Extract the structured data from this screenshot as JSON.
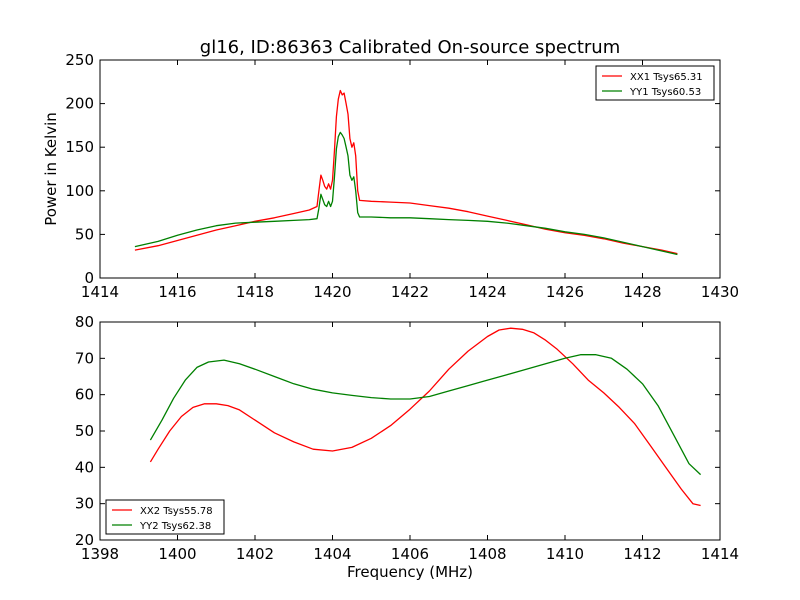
{
  "title": "gl16, ID:86363 Calibrated On-source spectrum",
  "chart_data": [
    {
      "type": "line",
      "ylabel": "Power in Kelvin",
      "xlabel": "",
      "xlim": [
        1414,
        1430
      ],
      "ylim": [
        0,
        250
      ],
      "xticks": [
        "1414",
        "1416",
        "1418",
        "1420",
        "1422",
        "1424",
        "1426",
        "1428",
        "1430"
      ],
      "yticks": [
        "0",
        "50",
        "100",
        "150",
        "200",
        "250"
      ],
      "legend_position": "top-right",
      "series": [
        {
          "name": "XX1 Tsys65.31",
          "color": "#ff0000",
          "points": [
            [
              1414.9,
              32
            ],
            [
              1415.5,
              37
            ],
            [
              1416,
              43
            ],
            [
              1416.5,
              49
            ],
            [
              1417,
              55
            ],
            [
              1417.5,
              60
            ],
            [
              1418,
              65
            ],
            [
              1418.5,
              69
            ],
            [
              1419,
              74
            ],
            [
              1419.4,
              78
            ],
            [
              1419.6,
              82
            ],
            [
              1419.65,
              100
            ],
            [
              1419.7,
              118
            ],
            [
              1419.75,
              112
            ],
            [
              1419.8,
              105
            ],
            [
              1419.85,
              102
            ],
            [
              1419.9,
              108
            ],
            [
              1419.95,
              102
            ],
            [
              1420.0,
              112
            ],
            [
              1420.05,
              145
            ],
            [
              1420.1,
              185
            ],
            [
              1420.15,
              205
            ],
            [
              1420.2,
              215
            ],
            [
              1420.25,
              210
            ],
            [
              1420.3,
              212
            ],
            [
              1420.35,
              200
            ],
            [
              1420.4,
              188
            ],
            [
              1420.45,
              160
            ],
            [
              1420.5,
              150
            ],
            [
              1420.55,
              155
            ],
            [
              1420.6,
              140
            ],
            [
              1420.65,
              100
            ],
            [
              1420.7,
              89
            ],
            [
              1421,
              88
            ],
            [
              1421.5,
              87
            ],
            [
              1422,
              86
            ],
            [
              1422.5,
              83
            ],
            [
              1423,
              80
            ],
            [
              1423.5,
              76
            ],
            [
              1424,
              71
            ],
            [
              1424.5,
              66
            ],
            [
              1425,
              61
            ],
            [
              1425.5,
              56
            ],
            [
              1426,
              52
            ],
            [
              1426.5,
              49
            ],
            [
              1427,
              45
            ],
            [
              1427.5,
              40
            ],
            [
              1428,
              36
            ],
            [
              1428.5,
              32
            ],
            [
              1428.9,
              28
            ]
          ]
        },
        {
          "name": "YY1 Tsys60.53",
          "color": "#008000",
          "points": [
            [
              1414.9,
              36
            ],
            [
              1415.5,
              42
            ],
            [
              1416,
              49
            ],
            [
              1416.5,
              55
            ],
            [
              1417,
              60
            ],
            [
              1417.5,
              63
            ],
            [
              1418,
              64
            ],
            [
              1418.5,
              65
            ],
            [
              1419,
              66
            ],
            [
              1419.4,
              67
            ],
            [
              1419.6,
              68
            ],
            [
              1419.65,
              80
            ],
            [
              1419.7,
              96
            ],
            [
              1419.75,
              90
            ],
            [
              1419.8,
              84
            ],
            [
              1419.85,
              82
            ],
            [
              1419.9,
              88
            ],
            [
              1419.95,
              82
            ],
            [
              1420.0,
              88
            ],
            [
              1420.05,
              115
            ],
            [
              1420.1,
              148
            ],
            [
              1420.15,
              162
            ],
            [
              1420.2,
              167
            ],
            [
              1420.25,
              164
            ],
            [
              1420.3,
              160
            ],
            [
              1420.35,
              150
            ],
            [
              1420.4,
              140
            ],
            [
              1420.45,
              118
            ],
            [
              1420.5,
              112
            ],
            [
              1420.55,
              116
            ],
            [
              1420.6,
              100
            ],
            [
              1420.65,
              75
            ],
            [
              1420.7,
              70
            ],
            [
              1421,
              70
            ],
            [
              1421.5,
              69
            ],
            [
              1422,
              69
            ],
            [
              1422.5,
              68
            ],
            [
              1423,
              67
            ],
            [
              1423.5,
              66
            ],
            [
              1424,
              65
            ],
            [
              1424.5,
              63
            ],
            [
              1425,
              60
            ],
            [
              1425.5,
              57
            ],
            [
              1426,
              53
            ],
            [
              1426.5,
              50
            ],
            [
              1427,
              46
            ],
            [
              1427.5,
              41
            ],
            [
              1428,
              36
            ],
            [
              1428.5,
              31
            ],
            [
              1428.9,
              27
            ]
          ]
        }
      ]
    },
    {
      "type": "line",
      "xlabel": "Frequency (MHz)",
      "ylabel": "",
      "xlim": [
        1398,
        1414
      ],
      "ylim": [
        20,
        80
      ],
      "xticks": [
        "1398",
        "1400",
        "1402",
        "1404",
        "1406",
        "1408",
        "1410",
        "1412",
        "1414"
      ],
      "yticks": [
        "20",
        "30",
        "40",
        "50",
        "60",
        "70",
        "80"
      ],
      "legend_position": "bottom-left",
      "series": [
        {
          "name": "XX2 Tsys55.78",
          "color": "#ff0000",
          "points": [
            [
              1399.3,
              41.5
            ],
            [
              1399.5,
              45
            ],
            [
              1399.8,
              50
            ],
            [
              1400.1,
              54
            ],
            [
              1400.4,
              56.5
            ],
            [
              1400.7,
              57.5
            ],
            [
              1401,
              57.5
            ],
            [
              1401.3,
              57
            ],
            [
              1401.6,
              55.8
            ],
            [
              1402,
              53
            ],
            [
              1402.5,
              49.5
            ],
            [
              1403,
              47
            ],
            [
              1403.5,
              45
            ],
            [
              1404,
              44.5
            ],
            [
              1404.5,
              45.5
            ],
            [
              1405,
              48
            ],
            [
              1405.5,
              51.5
            ],
            [
              1406,
              56
            ],
            [
              1406.5,
              61
            ],
            [
              1407,
              67
            ],
            [
              1407.5,
              72
            ],
            [
              1408,
              76
            ],
            [
              1408.3,
              77.8
            ],
            [
              1408.6,
              78.3
            ],
            [
              1408.9,
              78
            ],
            [
              1409.2,
              77
            ],
            [
              1409.5,
              75
            ],
            [
              1409.8,
              72.5
            ],
            [
              1410.2,
              68.5
            ],
            [
              1410.6,
              64
            ],
            [
              1411,
              60.5
            ],
            [
              1411.4,
              56.5
            ],
            [
              1411.8,
              52
            ],
            [
              1412.2,
              46
            ],
            [
              1412.6,
              40
            ],
            [
              1413,
              34
            ],
            [
              1413.3,
              30
            ],
            [
              1413.5,
              29.5
            ]
          ]
        },
        {
          "name": "YY2 Tsys62.38",
          "color": "#008000",
          "points": [
            [
              1399.3,
              47.5
            ],
            [
              1399.6,
              53
            ],
            [
              1399.9,
              59
            ],
            [
              1400.2,
              64
            ],
            [
              1400.5,
              67.5
            ],
            [
              1400.8,
              69
            ],
            [
              1401.2,
              69.5
            ],
            [
              1401.6,
              68.5
            ],
            [
              1402,
              67
            ],
            [
              1402.5,
              65
            ],
            [
              1403,
              63
            ],
            [
              1403.5,
              61.5
            ],
            [
              1404,
              60.5
            ],
            [
              1404.5,
              59.8
            ],
            [
              1405,
              59.2
            ],
            [
              1405.5,
              58.8
            ],
            [
              1406,
              58.8
            ],
            [
              1406.5,
              59.5
            ],
            [
              1407,
              61
            ],
            [
              1407.5,
              62.5
            ],
            [
              1408,
              64
            ],
            [
              1408.5,
              65.5
            ],
            [
              1409,
              67
            ],
            [
              1409.5,
              68.5
            ],
            [
              1410,
              70
            ],
            [
              1410.4,
              71
            ],
            [
              1410.8,
              71
            ],
            [
              1411.2,
              70
            ],
            [
              1411.6,
              67
            ],
            [
              1412,
              63
            ],
            [
              1412.4,
              57
            ],
            [
              1412.8,
              49
            ],
            [
              1413.2,
              41
            ],
            [
              1413.5,
              38
            ]
          ]
        }
      ]
    }
  ]
}
